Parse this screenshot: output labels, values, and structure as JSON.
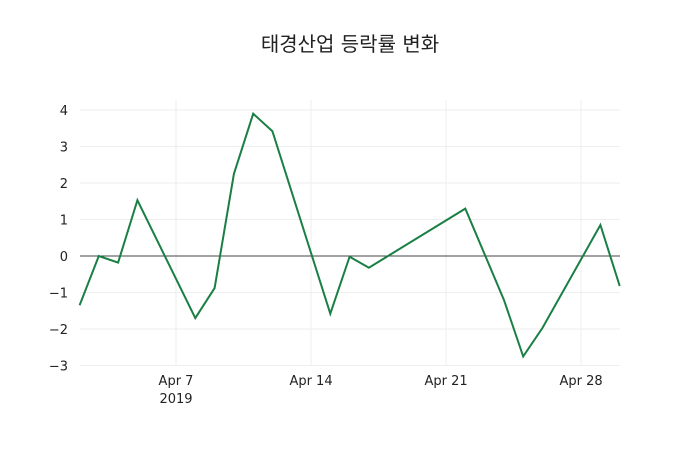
{
  "chart_data": {
    "type": "line",
    "title": "태경산업 등락률 변화",
    "xlabel": "",
    "ylabel": "",
    "ylim": [
      -3.05,
      4.25
    ],
    "y_ticks": [
      4,
      3,
      2,
      1,
      0,
      -1,
      -2,
      -3
    ],
    "y_tick_labels": [
      "4",
      "3",
      "2",
      "1",
      "0",
      "−1",
      "−2",
      "−3"
    ],
    "x_ticks": [
      {
        "label": "Apr 7",
        "sublabel": "2019",
        "date": "2019-04-07"
      },
      {
        "label": "Apr 14",
        "sublabel": "",
        "date": "2019-04-14"
      },
      {
        "label": "Apr 21",
        "sublabel": "",
        "date": "2019-04-21"
      },
      {
        "label": "Apr 28",
        "sublabel": "",
        "date": "2019-04-28"
      }
    ],
    "grid": true,
    "zero_line": true,
    "line_color": "#1a7f45",
    "series": [
      {
        "name": "등락률",
        "x": [
          "2019-04-02",
          "2019-04-03",
          "2019-04-04",
          "2019-04-05",
          "2019-04-08",
          "2019-04-09",
          "2019-04-10",
          "2019-04-11",
          "2019-04-12",
          "2019-04-15",
          "2019-04-16",
          "2019-04-17",
          "2019-04-22",
          "2019-04-24",
          "2019-04-25",
          "2019-04-26",
          "2019-04-29",
          "2019-04-30"
        ],
        "values": [
          -1.35,
          0.0,
          -0.18,
          1.53,
          -1.7,
          -0.88,
          2.25,
          3.9,
          3.42,
          -1.58,
          -0.02,
          -0.32,
          1.3,
          -1.2,
          -2.75,
          -1.97,
          0.85,
          -0.82
        ]
      }
    ]
  }
}
